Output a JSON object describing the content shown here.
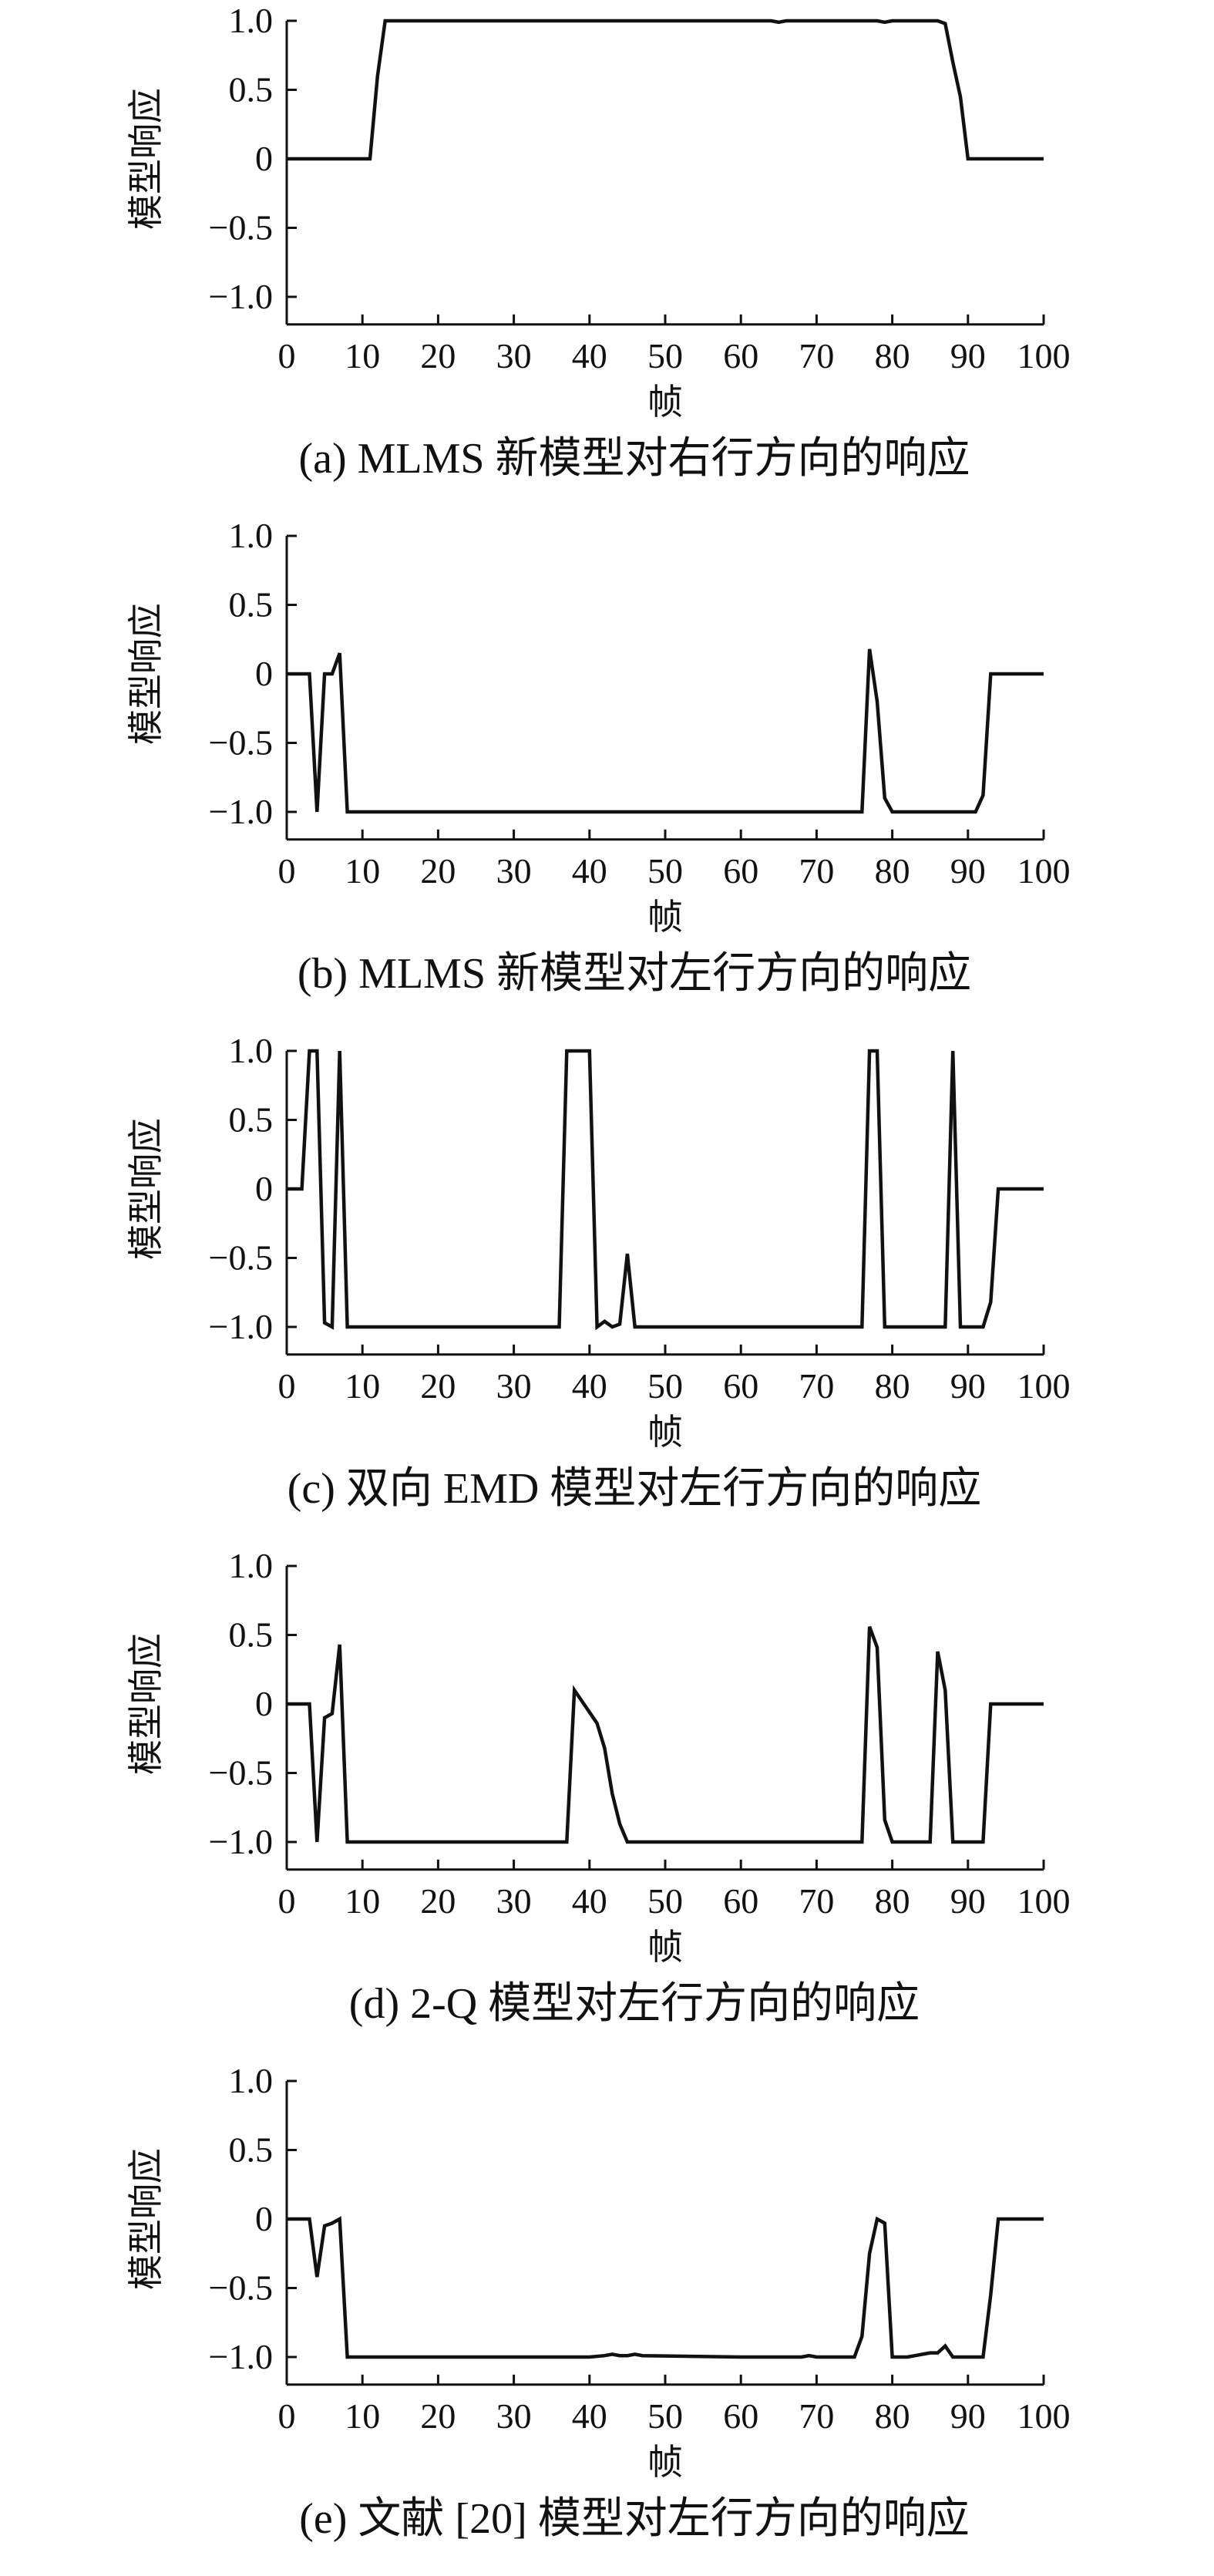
{
  "chart_data": [
    {
      "type": "line",
      "caption": "(a) MLMS 新模型对右行方向的响应",
      "xlabel": "帧",
      "ylabel": "模型响应",
      "xlim": [
        0,
        100
      ],
      "ylim": [
        -1.2,
        1.0
      ],
      "xticks": [
        "0",
        "10",
        "20",
        "30",
        "40",
        "50",
        "60",
        "70",
        "80",
        "90",
        "100"
      ],
      "yticks": [
        "1.0",
        "0.5",
        "0",
        "−0.5",
        "−1.0"
      ],
      "series": [
        {
          "x": [
            0,
            11,
            12,
            13,
            20,
            30,
            40,
            50,
            60,
            64,
            65,
            66,
            70,
            78,
            79,
            80,
            86,
            87,
            88,
            89,
            90,
            100
          ],
          "y": [
            0,
            0,
            0.6,
            1.0,
            1.0,
            1.0,
            1.0,
            1.0,
            1.0,
            1.0,
            0.99,
            1.0,
            1.0,
            1.0,
            0.99,
            1.0,
            1.0,
            0.98,
            0.7,
            0.45,
            0,
            0
          ]
        }
      ]
    },
    {
      "type": "line",
      "caption": "(b) MLMS 新模型对左行方向的响应",
      "xlabel": "帧",
      "ylabel": "模型响应",
      "xlim": [
        0,
        100
      ],
      "ylim": [
        -1.2,
        1.0
      ],
      "xticks": [
        "0",
        "10",
        "20",
        "30",
        "40",
        "50",
        "60",
        "70",
        "80",
        "90",
        "100"
      ],
      "yticks": [
        "1.0",
        "0.5",
        "0",
        "−0.5",
        "−1.0"
      ],
      "series": [
        {
          "x": [
            0,
            3,
            4,
            5,
            6,
            7,
            8,
            20,
            40,
            60,
            76,
            77,
            78,
            79,
            80,
            85,
            90,
            91,
            92,
            93,
            100
          ],
          "y": [
            0,
            0,
            -1.0,
            0,
            0,
            0.15,
            -1.0,
            -1.0,
            -1.0,
            -1.0,
            -1.0,
            0.18,
            -0.2,
            -0.9,
            -1.0,
            -1.0,
            -1.0,
            -1.0,
            -0.88,
            0,
            0
          ]
        }
      ]
    },
    {
      "type": "line",
      "caption": "(c) 双向 EMD 模型对左行方向的响应",
      "xlabel": "帧",
      "ylabel": "模型响应",
      "xlim": [
        0,
        100
      ],
      "ylim": [
        -1.2,
        1.0
      ],
      "xticks": [
        "0",
        "10",
        "20",
        "30",
        "40",
        "50",
        "60",
        "70",
        "80",
        "90",
        "100"
      ],
      "yticks": [
        "1.0",
        "0.5",
        "0",
        "−0.5",
        "−1.0"
      ],
      "series": [
        {
          "x": [
            0,
            2,
            3,
            4,
            5,
            6,
            7,
            8,
            20,
            36,
            37,
            38,
            39,
            40,
            41,
            42,
            43,
            44,
            45,
            46,
            60,
            76,
            77,
            78,
            79,
            80,
            87,
            88,
            89,
            90,
            91,
            92,
            93,
            94,
            100
          ],
          "y": [
            0,
            0,
            1.0,
            1.0,
            -0.97,
            -1.0,
            1.0,
            -1.0,
            -1.0,
            -1.0,
            1.0,
            1.0,
            1.0,
            1.0,
            -1.0,
            -0.96,
            -1.0,
            -0.98,
            -0.47,
            -1.0,
            -1.0,
            -1.0,
            1.0,
            1.0,
            -1.0,
            -1.0,
            -1.0,
            1.0,
            -1.0,
            -1.0,
            -1.0,
            -1.0,
            -0.82,
            0,
            0
          ]
        }
      ]
    },
    {
      "type": "line",
      "caption": "(d) 2-Q 模型对左行方向的响应",
      "xlabel": "帧",
      "ylabel": "模型响应",
      "xlim": [
        0,
        100
      ],
      "ylim": [
        -1.2,
        1.0
      ],
      "xticks": [
        "0",
        "10",
        "20",
        "30",
        "40",
        "50",
        "60",
        "70",
        "80",
        "90",
        "100"
      ],
      "yticks": [
        "1.0",
        "0.5",
        "0",
        "−0.5",
        "−1.0"
      ],
      "series": [
        {
          "x": [
            0,
            3,
            4,
            5,
            6,
            7,
            8,
            20,
            37,
            38,
            39,
            40,
            41,
            42,
            43,
            44,
            45,
            60,
            76,
            77,
            78,
            79,
            80,
            85,
            86,
            87,
            88,
            89,
            90,
            91,
            92,
            93,
            100
          ],
          "y": [
            0,
            0,
            -1.0,
            -0.1,
            -0.07,
            0.43,
            -1.0,
            -1.0,
            -1.0,
            0.1,
            0.02,
            -0.06,
            -0.14,
            -0.32,
            -0.65,
            -0.87,
            -1.0,
            -1.0,
            -1.0,
            0.56,
            0.41,
            -0.84,
            -1.0,
            -1.0,
            0.38,
            0.1,
            -1.0,
            -1.0,
            -1.0,
            -1.0,
            -1.0,
            0,
            0
          ]
        }
      ]
    },
    {
      "type": "line",
      "caption": "(e) 文献 [20] 模型对左行方向的响应",
      "xlabel": "帧",
      "ylabel": "模型响应",
      "xlim": [
        0,
        100
      ],
      "ylim": [
        -1.2,
        1.0
      ],
      "xticks": [
        "0",
        "10",
        "20",
        "30",
        "40",
        "50",
        "60",
        "70",
        "80",
        "90",
        "100"
      ],
      "yticks": [
        "1.0",
        "0.5",
        "0",
        "−0.5",
        "−1.0"
      ],
      "series": [
        {
          "x": [
            0,
            3,
            4,
            5,
            6,
            7,
            8,
            20,
            40,
            42,
            43,
            44,
            45,
            46,
            47,
            60,
            68,
            69,
            70,
            75,
            76,
            77,
            78,
            79,
            80,
            81,
            82,
            83,
            84,
            85,
            86,
            87,
            88,
            89,
            92,
            93,
            94,
            100
          ],
          "y": [
            0,
            0,
            -0.42,
            -0.05,
            -0.03,
            0,
            -1.0,
            -1.0,
            -1.0,
            -0.99,
            -0.98,
            -0.99,
            -0.99,
            -0.98,
            -0.99,
            -1.0,
            -1.0,
            -0.99,
            -1.0,
            -1.0,
            -0.85,
            -0.25,
            0,
            -0.03,
            -1.0,
            -1.0,
            -1.0,
            -0.99,
            -0.98,
            -0.97,
            -0.97,
            -0.92,
            -1.0,
            -1.0,
            -1.0,
            -0.55,
            0,
            0
          ]
        }
      ]
    }
  ]
}
